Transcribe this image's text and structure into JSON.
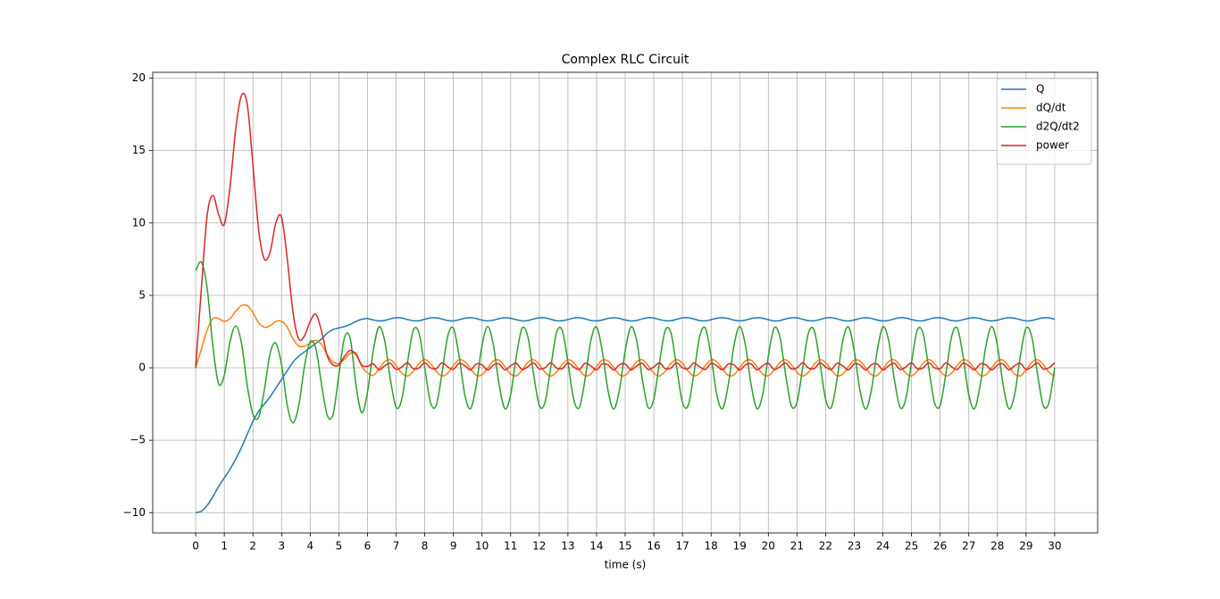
{
  "chart_data": {
    "type": "line",
    "title": "Complex RLC Circuit",
    "xlabel": "time (s)",
    "x": [
      0,
      0.2,
      0.4,
      0.6,
      0.8,
      1,
      1.2,
      1.4,
      1.6,
      1.8,
      2,
      2.2,
      2.4,
      2.6,
      2.8,
      3,
      3.2,
      3.4,
      3.6,
      3.8,
      4,
      4.2,
      4.4,
      4.6,
      4.8,
      5,
      5.2,
      5.4,
      5.6,
      5.8,
      6,
      6.2,
      6.4,
      6.6,
      6.8,
      7,
      7.2,
      7.4,
      7.6,
      7.8,
      8,
      8.2,
      8.4,
      8.6,
      8.8,
      9,
      9.2,
      9.4,
      9.6,
      9.8,
      10,
      10.2,
      10.4,
      10.6,
      10.8,
      11,
      11.2,
      11.4,
      11.6,
      11.8,
      12,
      12.2,
      12.4,
      12.6,
      12.8,
      13,
      13.2,
      13.4,
      13.6,
      13.8,
      14,
      14.2,
      14.4,
      14.6,
      14.8,
      15,
      15.2,
      15.4,
      15.6,
      15.8,
      16,
      16.2,
      16.4,
      16.6,
      16.8,
      17,
      17.2,
      17.4,
      17.6,
      17.8,
      18,
      18.2,
      18.4,
      18.6,
      18.8,
      19,
      19.2,
      19.4,
      19.6,
      19.8,
      20,
      20.2,
      20.4,
      20.6,
      20.8,
      21,
      21.2,
      21.4,
      21.6,
      21.8,
      22,
      22.2,
      22.4,
      22.6,
      22.8,
      23,
      23.2,
      23.4,
      23.6,
      23.8,
      24,
      24.2,
      24.4,
      24.6,
      24.8,
      25,
      25.2,
      25.4,
      25.6,
      25.8,
      26,
      26.2,
      26.4,
      26.6,
      26.8,
      27,
      27.2,
      27.4,
      27.6,
      27.8,
      28,
      28.2,
      28.4,
      28.6,
      28.8,
      29,
      29.2,
      29.4,
      29.6,
      29.8,
      30
    ],
    "series": [
      {
        "name": "Q",
        "color": "#1f77b4",
        "values": [
          -10,
          -9.9,
          -9.5,
          -8.9,
          -8.2,
          -7.6,
          -7.0,
          -6.3,
          -5.5,
          -4.6,
          -3.7,
          -3.0,
          -2.5,
          -2.0,
          -1.4,
          -0.8,
          -0.2,
          0.4,
          0.8,
          1.1,
          1.4,
          1.7,
          2.0,
          2.4,
          2.65,
          2.75,
          2.85,
          3.0,
          3.2,
          3.35,
          3.4,
          3.3,
          3.24,
          3.27,
          3.38,
          3.46,
          3.44,
          3.33,
          3.25,
          3.25,
          3.35,
          3.45,
          3.45,
          3.37,
          3.26,
          3.24,
          3.32,
          3.42,
          3.46,
          3.4,
          3.29,
          3.24,
          3.29,
          3.4,
          3.46,
          3.42,
          3.32,
          3.24,
          3.26,
          3.37,
          3.45,
          3.45,
          3.35,
          3.25,
          3.25,
          3.33,
          3.44,
          3.46,
          3.38,
          3.27,
          3.24,
          3.3,
          3.41,
          3.46,
          3.41,
          3.3,
          3.24,
          3.27,
          3.38,
          3.46,
          3.44,
          3.33,
          3.25,
          3.25,
          3.35,
          3.45,
          3.45,
          3.37,
          3.26,
          3.24,
          3.32,
          3.42,
          3.46,
          3.4,
          3.29,
          3.24,
          3.29,
          3.4,
          3.46,
          3.42,
          3.32,
          3.24,
          3.26,
          3.37,
          3.45,
          3.45,
          3.35,
          3.25,
          3.25,
          3.33,
          3.44,
          3.46,
          3.38,
          3.27,
          3.24,
          3.3,
          3.41,
          3.46,
          3.41,
          3.3,
          3.24,
          3.27,
          3.38,
          3.46,
          3.44,
          3.33,
          3.25,
          3.25,
          3.35,
          3.45,
          3.45,
          3.37,
          3.26,
          3.24,
          3.32,
          3.42,
          3.46,
          3.4,
          3.29,
          3.24,
          3.29,
          3.4,
          3.46,
          3.42,
          3.32,
          3.24,
          3.26,
          3.37,
          3.45,
          3.45,
          3.35
        ]
      },
      {
        "name": "dQ/dt",
        "color": "#ff7f0e",
        "values": [
          0,
          1.3,
          2.6,
          3.4,
          3.4,
          3.2,
          3.4,
          3.9,
          4.3,
          4.3,
          3.8,
          3.1,
          2.8,
          2.9,
          3.2,
          3.2,
          2.8,
          2.0,
          1.5,
          1.5,
          1.7,
          1.9,
          1.6,
          0.9,
          0.4,
          0.3,
          0.6,
          1.0,
          1.0,
          0.1,
          -0.35,
          -0.52,
          -0.09,
          0.43,
          0.55,
          0.16,
          -0.37,
          -0.56,
          -0.24,
          0.31,
          0.57,
          0.31,
          -0.24,
          -0.56,
          -0.37,
          0.16,
          0.55,
          0.43,
          -0.08,
          -0.52,
          -0.48,
          0,
          0.48,
          0.52,
          0.08,
          -0.43,
          -0.55,
          -0.16,
          0.37,
          0.56,
          0.23,
          -0.31,
          -0.57,
          -0.31,
          0.24,
          0.56,
          0.37,
          -0.16,
          -0.55,
          -0.43,
          0.09,
          0.52,
          0.48,
          0,
          -0.48,
          -0.52,
          -0.09,
          0.43,
          0.55,
          0.16,
          -0.37,
          -0.56,
          -0.24,
          0.31,
          0.57,
          0.31,
          -0.24,
          -0.56,
          -0.37,
          0.16,
          0.55,
          0.43,
          -0.08,
          -0.52,
          -0.48,
          0,
          0.48,
          0.52,
          0.08,
          -0.43,
          -0.55,
          -0.16,
          0.37,
          0.56,
          0.23,
          -0.31,
          -0.57,
          -0.31,
          0.24,
          0.56,
          0.37,
          -0.16,
          -0.55,
          -0.43,
          0.09,
          0.52,
          0.48,
          0,
          -0.48,
          -0.52,
          -0.09,
          0.43,
          0.55,
          0.16,
          -0.37,
          -0.56,
          -0.24,
          0.31,
          0.57,
          0.31,
          -0.24,
          -0.56,
          -0.37,
          0.16,
          0.55,
          0.43,
          -0.08,
          -0.52,
          -0.48,
          0,
          0.48,
          0.52,
          0.08,
          -0.43,
          -0.55,
          -0.16,
          0.37,
          0.56,
          0.23,
          -0.31,
          -0.57
        ]
      },
      {
        "name": "d2Q/dt2",
        "color": "#2ca02c",
        "values": [
          6.7,
          7.3,
          5.5,
          1.5,
          -1.1,
          -0.5,
          1.8,
          2.9,
          1.7,
          -1.2,
          -3.2,
          -3.4,
          -1.5,
          1.0,
          1.7,
          0.2,
          -2.6,
          -3.8,
          -2.6,
          0.1,
          1.8,
          1.3,
          -1.2,
          -3.3,
          -3.2,
          -0.5,
          2.1,
          2.0,
          -1.2,
          -3.1,
          -1.7,
          1.16,
          2.82,
          1.88,
          -0.79,
          -2.73,
          -2.16,
          0.39,
          2.59,
          2.4,
          0.01,
          -2.39,
          -2.6,
          -0.41,
          2.15,
          2.74,
          0.81,
          -1.86,
          -2.82,
          -1.18,
          1.54,
          2.85,
          1.54,
          -1.19,
          -2.82,
          -1.86,
          0.81,
          2.74,
          2.15,
          -0.42,
          -2.6,
          -2.39,
          0.01,
          2.41,
          2.59,
          0.39,
          -2.17,
          -2.73,
          -0.78,
          1.88,
          2.82,
          1.16,
          -1.56,
          -2.85,
          -1.52,
          1.16,
          2.82,
          1.88,
          -0.79,
          -2.73,
          -2.16,
          0.39,
          2.59,
          2.4,
          0.01,
          -2.39,
          -2.6,
          -0.41,
          2.15,
          2.74,
          0.81,
          -1.86,
          -2.82,
          -1.18,
          1.54,
          2.85,
          1.54,
          -1.19,
          -2.82,
          -1.86,
          0.81,
          2.74,
          2.15,
          -0.42,
          -2.6,
          -2.39,
          0.01,
          2.41,
          2.59,
          0.39,
          -2.17,
          -2.73,
          -0.78,
          1.88,
          2.82,
          1.16,
          -1.56,
          -2.85,
          -1.52,
          1.16,
          2.82,
          1.88,
          -0.79,
          -2.73,
          -2.16,
          0.39,
          2.59,
          2.4,
          0.01,
          -2.39,
          -2.6,
          -0.41,
          2.15,
          2.74,
          0.81,
          -1.86,
          -2.82,
          -1.18,
          1.54,
          2.85,
          1.54,
          -1.19,
          -2.82,
          -1.86,
          0.81,
          2.74,
          2.15,
          -0.42,
          -2.6,
          -2.39,
          0.01
        ]
      },
      {
        "name": "power",
        "color": "#d62728",
        "values": [
          0,
          5.5,
          10.5,
          11.9,
          10.6,
          9.9,
          12.5,
          16.5,
          18.8,
          18.2,
          14.0,
          9.5,
          7.5,
          8.0,
          10.0,
          10.4,
          7.5,
          3.8,
          2.0,
          2.2,
          3.2,
          3.7,
          2.5,
          0.8,
          0.2,
          0.2,
          0.8,
          1.2,
          0.9,
          0.2,
          0.1,
          0.27,
          -0.14,
          0.13,
          0.31,
          -0.11,
          0.06,
          0.34,
          -0.06,
          -0.01,
          0.35,
          0.0,
          -0.06,
          0.34,
          0.07,
          -0.11,
          0.31,
          0.14,
          -0.14,
          0.26,
          0.2,
          -0.15,
          0.2,
          0.26,
          -0.14,
          0.14,
          0.31,
          -0.11,
          0.07,
          0.34,
          -0.07,
          0.0,
          0.35,
          -0.01,
          -0.06,
          0.34,
          0.06,
          -0.11,
          0.31,
          0.13,
          -0.14,
          0.27,
          0.2,
          -0.15,
          0.21,
          0.27,
          -0.14,
          0.13,
          0.31,
          -0.11,
          0.06,
          0.34,
          -0.06,
          -0.01,
          0.35,
          0.0,
          -0.06,
          0.34,
          0.07,
          -0.11,
          0.31,
          0.14,
          -0.14,
          0.26,
          0.2,
          -0.15,
          0.2,
          0.26,
          -0.14,
          0.14,
          0.31,
          -0.11,
          0.07,
          0.34,
          -0.07,
          0.0,
          0.35,
          -0.01,
          -0.06,
          0.34,
          0.06,
          -0.11,
          0.31,
          0.13,
          -0.14,
          0.27,
          0.2,
          -0.15,
          0.21,
          0.27,
          -0.14,
          0.13,
          0.31,
          -0.11,
          0.06,
          0.34,
          -0.06,
          -0.01,
          0.35,
          0.0,
          -0.06,
          0.34,
          0.07,
          -0.11,
          0.31,
          0.14,
          -0.14,
          0.26,
          0.2,
          -0.15,
          0.2,
          0.26,
          -0.14,
          0.14,
          0.31,
          -0.11,
          0.07,
          0.34,
          -0.07,
          0.0,
          0.35
        ]
      }
    ],
    "xlim": [
      -1.5,
      31.5
    ],
    "xticks": [
      0,
      1,
      2,
      3,
      4,
      5,
      6,
      7,
      8,
      9,
      10,
      11,
      12,
      13,
      14,
      15,
      16,
      17,
      18,
      19,
      20,
      21,
      22,
      23,
      24,
      25,
      26,
      27,
      28,
      29,
      30
    ],
    "ylim": [
      -11.4,
      20.4
    ],
    "yticks": [
      {
        "value": -10,
        "label": "−10"
      },
      {
        "value": -5,
        "label": "−5"
      },
      0,
      5,
      10,
      15,
      20
    ],
    "grid": true,
    "legend": "upper right"
  }
}
